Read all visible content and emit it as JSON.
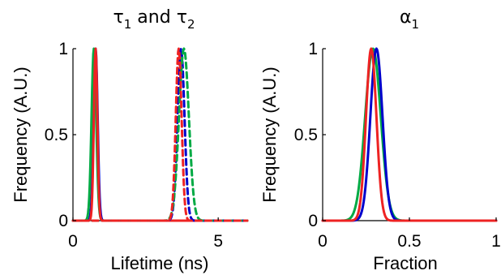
{
  "chart_data": [
    {
      "type": "line",
      "title": "τ1 and τ2",
      "title_parts": {
        "sym1": "τ",
        "sub1": "1",
        "joiner": "and",
        "sym2": "τ",
        "sub2": "2"
      },
      "xlabel": "Lifetime (ns)",
      "ylabel": "Frequency (A.U.)",
      "xlim": [
        0,
        6
      ],
      "ylim": [
        0,
        1
      ],
      "xticks": [
        "0",
        "5"
      ],
      "yticks": [
        "0",
        "0.5",
        "1"
      ],
      "grid": false,
      "series": [
        {
          "color": "#0000cc",
          "style": "solid",
          "peaks": [
            {
              "center": 0.78,
              "width": 0.07
            }
          ]
        },
        {
          "color": "#00aa44",
          "style": "solid",
          "peaks": [
            {
              "center": 0.72,
              "width": 0.08
            }
          ]
        },
        {
          "color": "#ee2222",
          "style": "solid",
          "peaks": [
            {
              "center": 0.78,
              "width": 0.06
            }
          ]
        },
        {
          "color": "#0000cc",
          "style": "dashed",
          "peaks": [
            {
              "center": 3.72,
              "width": 0.12
            }
          ]
        },
        {
          "color": "#00aa44",
          "style": "dashed",
          "peaks": [
            {
              "center": 3.82,
              "width": 0.17
            }
          ]
        },
        {
          "color": "#ee2222",
          "style": "dashed",
          "peaks": [
            {
              "center": 3.64,
              "width": 0.1
            }
          ]
        }
      ]
    },
    {
      "type": "line",
      "title": "α1",
      "title_parts": {
        "sym1": "α",
        "sub1": "1"
      },
      "xlabel": "Fraction",
      "ylabel": "Frequency (A.U.)",
      "xlim": [
        0,
        1
      ],
      "ylim": [
        0,
        1
      ],
      "xticks": [
        "0",
        "0.5",
        "1"
      ],
      "yticks": [
        "0",
        "0.5",
        "1"
      ],
      "grid": false,
      "series": [
        {
          "color": "#00aa44",
          "style": "solid",
          "peaks": [
            {
              "center": 0.29,
              "width": 0.045
            }
          ]
        },
        {
          "color": "#0000cc",
          "style": "solid",
          "peaks": [
            {
              "center": 0.31,
              "width": 0.035
            }
          ]
        },
        {
          "color": "#ee2222",
          "style": "solid",
          "peaks": [
            {
              "center": 0.28,
              "width": 0.03
            }
          ]
        }
      ]
    }
  ]
}
